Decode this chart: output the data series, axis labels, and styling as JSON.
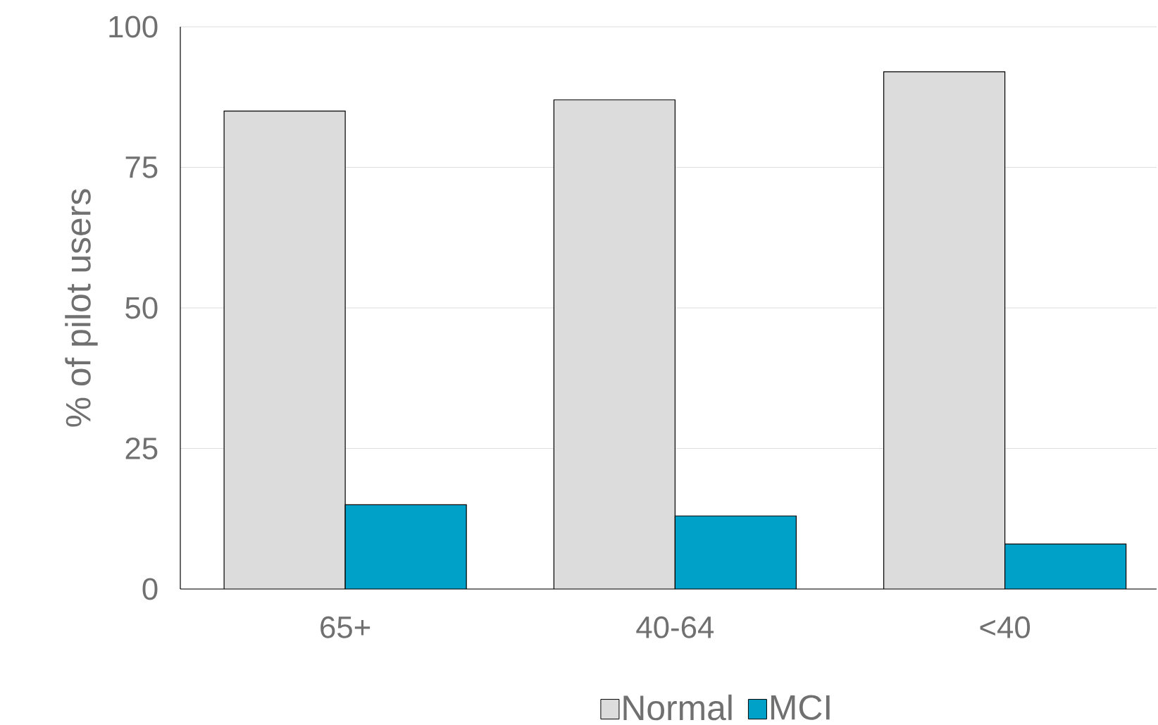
{
  "chart_data": {
    "type": "bar",
    "ylabel": "% of pilot users",
    "categories": [
      "65+",
      "40-64",
      "<40"
    ],
    "series": [
      {
        "name": "Normal",
        "color": "#dcdcdc",
        "values": [
          85,
          87,
          92
        ]
      },
      {
        "name": "MCI",
        "color": "#00a1c9",
        "values": [
          15,
          13,
          8
        ]
      }
    ],
    "ylim": [
      0,
      100
    ],
    "yticks": [
      0,
      25,
      50,
      75,
      100
    ],
    "grid": "y",
    "legend": "bottom"
  }
}
